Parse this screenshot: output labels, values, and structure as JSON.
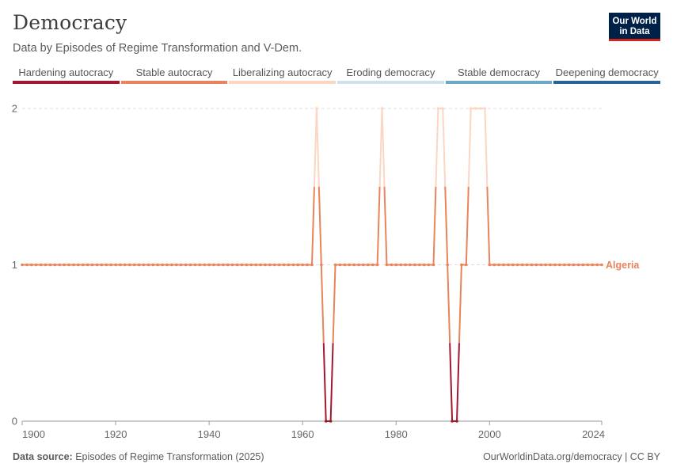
{
  "header": {
    "title": "Democracy",
    "subtitle": "Data by Episodes of Regime Transformation and V-Dem.",
    "logo_line1": "Our World",
    "logo_line2": "in Data"
  },
  "legend": [
    {
      "label": "Hardening autocracy",
      "color": "#a2192f"
    },
    {
      "label": "Stable autocracy",
      "color": "#e9835c"
    },
    {
      "label": "Liberalizing autocracy",
      "color": "#fbd6c2"
    },
    {
      "label": "Eroding democracy",
      "color": "#cfe2ec"
    },
    {
      "label": "Stable democracy",
      "color": "#6aa9c8"
    },
    {
      "label": "Deepening democracy",
      "color": "#2a6399"
    }
  ],
  "footer": {
    "source_label": "Data source:",
    "source_text": "Episodes of Regime Transformation (2025)",
    "link": "OurWorldinData.org/democracy | CC BY"
  },
  "chart_data": {
    "type": "line",
    "series": [
      {
        "name": "Algeria",
        "color": "#e9835c",
        "x": [
          1900,
          1901,
          1902,
          1903,
          1904,
          1905,
          1906,
          1907,
          1908,
          1909,
          1910,
          1911,
          1912,
          1913,
          1914,
          1915,
          1916,
          1917,
          1918,
          1919,
          1920,
          1921,
          1922,
          1923,
          1924,
          1925,
          1926,
          1927,
          1928,
          1929,
          1930,
          1931,
          1932,
          1933,
          1934,
          1935,
          1936,
          1937,
          1938,
          1939,
          1940,
          1941,
          1942,
          1943,
          1944,
          1945,
          1946,
          1947,
          1948,
          1949,
          1950,
          1951,
          1952,
          1953,
          1954,
          1955,
          1956,
          1957,
          1958,
          1959,
          1960,
          1961,
          1962,
          1963,
          1964,
          1965,
          1966,
          1967,
          1968,
          1969,
          1970,
          1971,
          1972,
          1973,
          1974,
          1975,
          1976,
          1977,
          1978,
          1979,
          1980,
          1981,
          1982,
          1983,
          1984,
          1985,
          1986,
          1987,
          1988,
          1989,
          1990,
          1991,
          1992,
          1993,
          1994,
          1995,
          1996,
          1997,
          1998,
          1999,
          2000,
          2001,
          2002,
          2003,
          2004,
          2005,
          2006,
          2007,
          2008,
          2009,
          2010,
          2011,
          2012,
          2013,
          2014,
          2015,
          2016,
          2017,
          2018,
          2019,
          2020,
          2021,
          2022,
          2023,
          2024
        ],
        "y": [
          1,
          1,
          1,
          1,
          1,
          1,
          1,
          1,
          1,
          1,
          1,
          1,
          1,
          1,
          1,
          1,
          1,
          1,
          1,
          1,
          1,
          1,
          1,
          1,
          1,
          1,
          1,
          1,
          1,
          1,
          1,
          1,
          1,
          1,
          1,
          1,
          1,
          1,
          1,
          1,
          1,
          1,
          1,
          1,
          1,
          1,
          1,
          1,
          1,
          1,
          1,
          1,
          1,
          1,
          1,
          1,
          1,
          1,
          1,
          1,
          1,
          1,
          1,
          2,
          1,
          0,
          0,
          1,
          1,
          1,
          1,
          1,
          1,
          1,
          1,
          1,
          1,
          2,
          1,
          1,
          1,
          1,
          1,
          1,
          1,
          1,
          1,
          1,
          1,
          2,
          2,
          1,
          0,
          0,
          1,
          1,
          2,
          2,
          2,
          2,
          1,
          1,
          1,
          1,
          1,
          1,
          1,
          1,
          1,
          1,
          1,
          1,
          1,
          1,
          1,
          1,
          1,
          1,
          1,
          1,
          1,
          1,
          1,
          1,
          1
        ]
      }
    ],
    "xlim": [
      1900,
      2024
    ],
    "ylim": [
      0,
      2
    ],
    "xticks": [
      "1900",
      "1920",
      "1940",
      "1960",
      "1980",
      "2000",
      "2024"
    ],
    "yticks": [
      "0",
      "1",
      "2"
    ],
    "grid": "horizontal dashed",
    "series_label": "Algeria",
    "value_colors": {
      "0": "#a2192f",
      "1": "#e9835c",
      "2": "#fbd6c2"
    }
  }
}
